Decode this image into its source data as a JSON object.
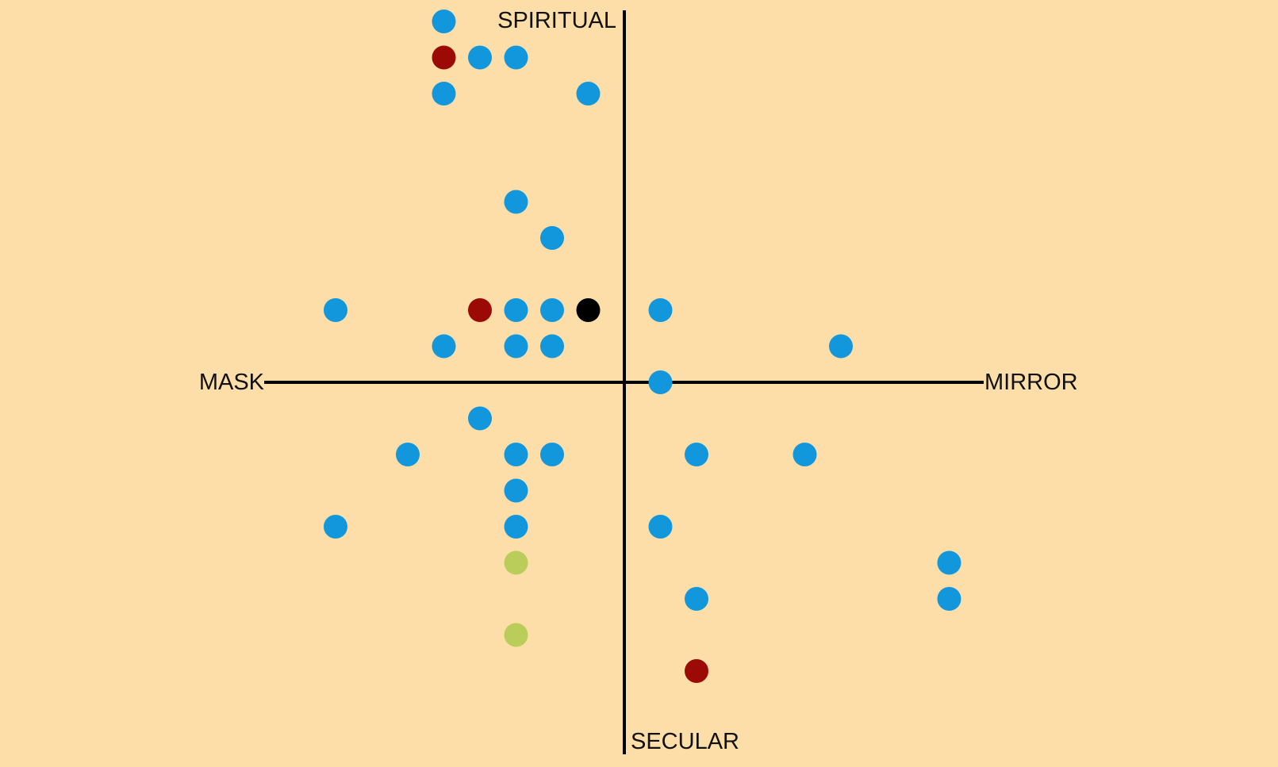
{
  "chart_data": {
    "type": "scatter",
    "title": "",
    "axis_labels": {
      "top": "SPIRITUAL",
      "bottom": "SECULAR",
      "left": "MASK",
      "right": "MIRROR"
    },
    "xlim": [
      -10,
      10
    ],
    "ylim": [
      -10,
      10
    ],
    "grid": false,
    "legend": "none",
    "colors": {
      "background": "#fddea8",
      "blue": "#1296dc",
      "red": "#9b0a05",
      "black": "#000000",
      "green": "#bacd5a"
    },
    "points": [
      {
        "x": -5,
        "y": 10,
        "color": "blue"
      },
      {
        "x": -5,
        "y": 9,
        "color": "red"
      },
      {
        "x": -4,
        "y": 9,
        "color": "blue"
      },
      {
        "x": -3,
        "y": 9,
        "color": "blue"
      },
      {
        "x": -5,
        "y": 8,
        "color": "blue"
      },
      {
        "x": -1,
        "y": 8,
        "color": "blue"
      },
      {
        "x": -3,
        "y": 5,
        "color": "blue"
      },
      {
        "x": -2,
        "y": 4,
        "color": "blue"
      },
      {
        "x": -8,
        "y": 2,
        "color": "blue"
      },
      {
        "x": -4,
        "y": 2,
        "color": "red"
      },
      {
        "x": -3,
        "y": 2,
        "color": "blue"
      },
      {
        "x": -2,
        "y": 2,
        "color": "blue"
      },
      {
        "x": -1,
        "y": 2,
        "color": "black"
      },
      {
        "x": 1,
        "y": 2,
        "color": "blue"
      },
      {
        "x": -5,
        "y": 1,
        "color": "blue"
      },
      {
        "x": -3,
        "y": 1,
        "color": "blue"
      },
      {
        "x": -2,
        "y": 1,
        "color": "blue"
      },
      {
        "x": 6,
        "y": 1,
        "color": "blue"
      },
      {
        "x": 1,
        "y": 0,
        "color": "blue"
      },
      {
        "x": -4,
        "y": -1,
        "color": "blue"
      },
      {
        "x": -6,
        "y": -2,
        "color": "blue"
      },
      {
        "x": -3,
        "y": -2,
        "color": "blue"
      },
      {
        "x": -2,
        "y": -2,
        "color": "blue"
      },
      {
        "x": 2,
        "y": -2,
        "color": "blue"
      },
      {
        "x": 5,
        "y": -2,
        "color": "blue"
      },
      {
        "x": -3,
        "y": -3,
        "color": "blue"
      },
      {
        "x": -8,
        "y": -4,
        "color": "blue"
      },
      {
        "x": -3,
        "y": -4,
        "color": "blue"
      },
      {
        "x": 1,
        "y": -4,
        "color": "blue"
      },
      {
        "x": -3,
        "y": -5,
        "color": "green"
      },
      {
        "x": 9,
        "y": -5,
        "color": "blue"
      },
      {
        "x": 2,
        "y": -6,
        "color": "blue"
      },
      {
        "x": 9,
        "y": -6,
        "color": "blue"
      },
      {
        "x": -3,
        "y": -7,
        "color": "green"
      },
      {
        "x": 2,
        "y": -8,
        "color": "red"
      }
    ]
  }
}
